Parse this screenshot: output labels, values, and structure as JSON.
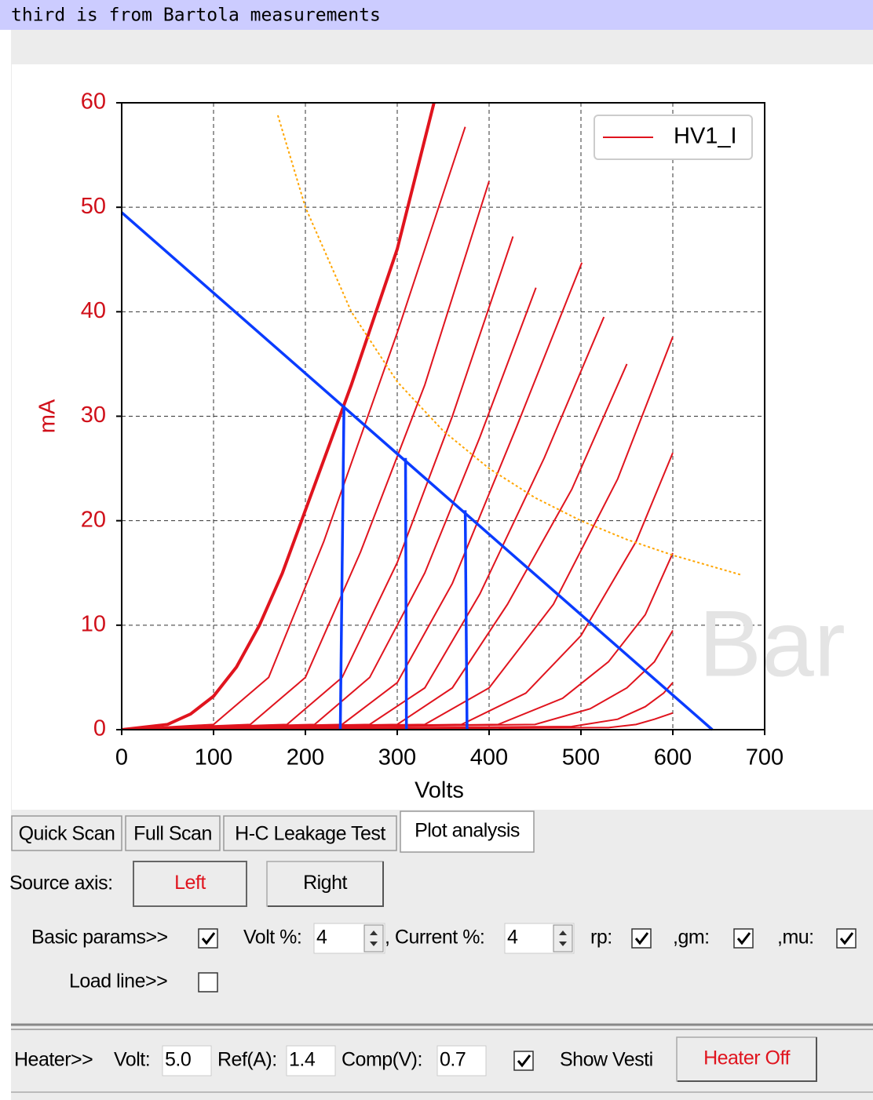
{
  "banner": "third is from Bartola measurements",
  "chart_data": {
    "type": "line",
    "xlabel": "Volts",
    "ylabel": "mA",
    "xlim": [
      0,
      700
    ],
    "xticks": [
      0,
      100,
      200,
      300,
      400,
      500,
      600,
      700
    ],
    "ylim": [
      0,
      60
    ],
    "yticks": [
      0,
      10,
      20,
      30,
      40,
      50,
      60
    ],
    "grid": true,
    "legend": "upper right",
    "watermark": "Bar",
    "series": [
      {
        "name": "HV1_I",
        "color": "#e0141e",
        "curves": [
          {
            "x": [
              0,
              50,
              75,
              100,
              125,
              150,
              175,
              200,
              250,
              300,
              340
            ],
            "values": [
              0,
              0.5,
              1.5,
              3.2,
              6,
              10,
              15,
              21,
              33,
              46,
              60
            ]
          },
          {
            "x": [
              0,
              100,
              160,
              220,
              300,
              374
            ],
            "values": [
              0,
              0.5,
              5,
              18,
              38,
              57.7
            ]
          },
          {
            "x": [
              0,
              140,
              200,
              260,
              330,
              400
            ],
            "values": [
              0,
              0.5,
              5,
              17,
              33,
              52.5
            ]
          },
          {
            "x": [
              0,
              180,
              240,
              300,
              360,
              426
            ],
            "values": [
              0,
              0.5,
              5,
              16,
              30,
              47.2
            ]
          },
          {
            "x": [
              0,
              210,
              270,
              330,
              390,
              451
            ],
            "values": [
              0,
              0.5,
              5,
              15,
              28,
              42.3
            ]
          },
          {
            "x": [
              0,
              240,
              300,
              360,
              430,
              501
            ],
            "values": [
              0,
              0.5,
              4.5,
              14,
              29,
              44.7
            ]
          },
          {
            "x": [
              0,
              270,
              330,
              390,
              460,
              525
            ],
            "values": [
              0,
              0.5,
              4,
              13,
              26,
              39.5
            ]
          },
          {
            "x": [
              0,
              300,
              360,
              420,
              490,
              550
            ],
            "values": [
              0,
              0.5,
              4,
              12,
              23,
              35
            ]
          },
          {
            "x": [
              0,
              330,
              400,
              470,
              540,
              600
            ],
            "values": [
              0,
              0.5,
              4,
              12,
              24,
              37.6
            ]
          },
          {
            "x": [
              0,
              370,
              440,
              500,
              560,
              600
            ],
            "values": [
              0,
              0.5,
              3.5,
              9,
              18,
              26.5
            ]
          },
          {
            "x": [
              0,
              410,
              480,
              530,
              570,
              600
            ],
            "values": [
              0,
              0.5,
              3,
              6.5,
              11,
              16.9
            ]
          },
          {
            "x": [
              0,
              450,
              510,
              550,
              580,
              600
            ],
            "values": [
              0,
              0.5,
              2,
              4,
              6.5,
              9.5
            ]
          },
          {
            "x": [
              0,
              490,
              540,
              570,
              590,
              600
            ],
            "values": [
              0,
              0.3,
              1,
              2.2,
              3.5,
              4.5
            ]
          },
          {
            "x": [
              0,
              530,
              560,
              580,
              600
            ],
            "values": [
              0,
              0.2,
              0.5,
              1,
              1.6
            ]
          }
        ]
      }
    ],
    "power_curve": {
      "color": "#ffa500",
      "x": [
        170,
        200,
        250,
        300,
        350,
        400,
        450,
        500,
        550,
        600,
        675
      ],
      "values": [
        58.8,
        50,
        40,
        33.3,
        28.6,
        25,
        22.2,
        20,
        18.2,
        16.7,
        14.8
      ]
    },
    "load_line": {
      "color": "#0a3cff",
      "x": [
        0,
        643
      ],
      "values": [
        49.5,
        0
      ]
    },
    "operating_points": [
      {
        "x": [
          242,
          238
        ],
        "values": [
          31,
          0
        ]
      },
      {
        "x": [
          309,
          310
        ],
        "values": [
          26,
          0
        ]
      },
      {
        "x": [
          374,
          376
        ],
        "values": [
          21,
          0
        ]
      }
    ]
  },
  "tabs": [
    "Quick Scan",
    "Full Scan",
    "H-C Leakage Test",
    "Plot analysis"
  ],
  "active_tab": 3,
  "source_axis": {
    "label": "Source axis:",
    "buttons": [
      "Left",
      "Right"
    ],
    "selected": 0
  },
  "basic_params": {
    "label": "Basic params>>",
    "checked": true,
    "volt_label": "Volt %:",
    "volt": "4",
    "current_label": ", Current %:",
    "current": "4",
    "rp_label": "rp:",
    "rp": true,
    "gm_label": ",gm:",
    "gm": true,
    "mu_label": ",mu:",
    "mu": true
  },
  "load_line_option": {
    "label": "Load line>>",
    "checked": false
  },
  "heater": {
    "label": "Heater>>",
    "volt_label": "Volt:",
    "volt": "5.0",
    "ref_label": "Ref(A):",
    "ref": "1.4",
    "comp_label": "Comp(V):",
    "comp": "0.7",
    "show_vesti": true,
    "show_vesti_label": "Show Vesti",
    "button": "Heater Off"
  }
}
